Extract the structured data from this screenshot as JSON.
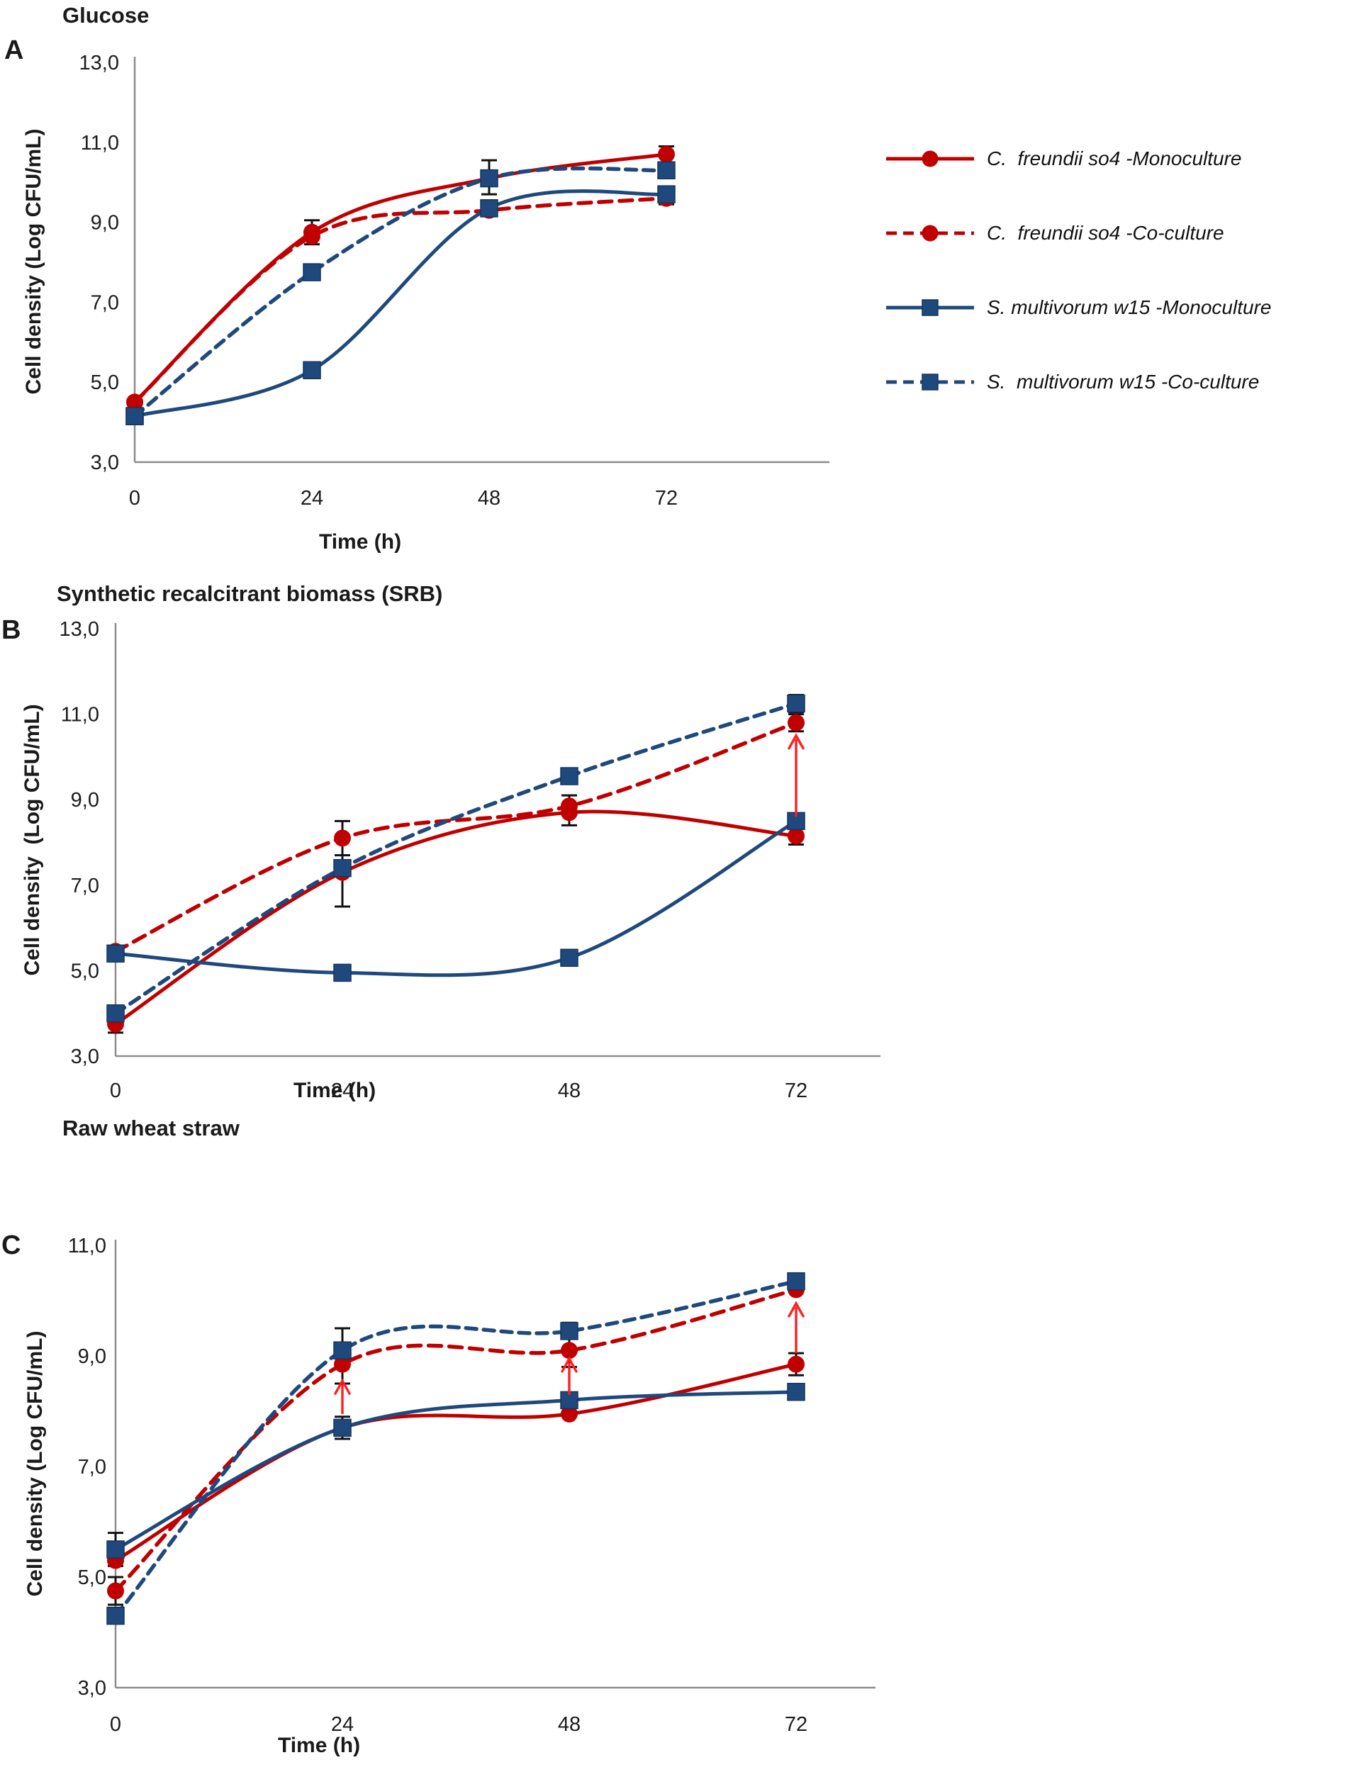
{
  "colors": {
    "red": "#C00000",
    "blue": "#1F497D",
    "blue_border": "#16365C",
    "arrow": "#FF1F1F",
    "axis": "#8C8C8C",
    "error": "#111111"
  },
  "legend": {
    "items": [
      {
        "label": "C.  freundii so4 -Monoculture",
        "color": "red",
        "line": "solid",
        "marker": "circle"
      },
      {
        "label": "C.  freundii so4 -Co-culture",
        "color": "red",
        "line": "dashed",
        "marker": "circle"
      },
      {
        "label": "S. multivorum w15 -Monoculture",
        "color": "blue",
        "line": "solid",
        "marker": "square"
      },
      {
        "label": "S.  multivorum w15 -Co-culture",
        "color": "blue",
        "line": "dashed",
        "marker": "square"
      }
    ]
  },
  "chart_data": [
    {
      "id": "A",
      "type": "line",
      "panel_label": "A",
      "title": "Glucose",
      "xlabel": "Time (h)",
      "ylabel": "Cell density (Log CFU/mL)",
      "x": [
        0,
        24,
        48,
        72
      ],
      "xtick_labels": [
        "0",
        "24",
        "48",
        "72"
      ],
      "ylim": [
        3,
        13
      ],
      "ytick_values": [
        13,
        11,
        9,
        7,
        5,
        3
      ],
      "ytick_labels": [
        "13,0",
        "11,0",
        "9,0",
        "7,0",
        "5,0",
        "3,0"
      ],
      "series": [
        {
          "name": "C. freundii so4 -Monoculture",
          "color": "red",
          "line": "solid",
          "marker": "circle",
          "values": [
            4.5,
            8.75,
            10.1,
            10.7
          ]
        },
        {
          "name": "C. freundii so4 -Co-culture",
          "color": "red",
          "line": "dashed",
          "marker": "circle",
          "values": [
            4.5,
            8.65,
            9.3,
            9.6
          ]
        },
        {
          "name": "S. multivorum w15 -Co-culture",
          "color": "blue",
          "line": "dashed",
          "marker": "square",
          "values": [
            4.15,
            7.75,
            10.1,
            10.3
          ]
        },
        {
          "name": "S. multivorum w15 -Monoculture",
          "color": "blue",
          "line": "solid",
          "marker": "square",
          "values": [
            4.15,
            5.3,
            9.35,
            9.7
          ]
        }
      ],
      "error_bars": [
        {
          "t": 0,
          "lo": 3.95,
          "hi": 4.35
        },
        {
          "t": 24,
          "lo": 8.45,
          "hi": 9.05
        },
        {
          "t": 48,
          "lo": 9.7,
          "hi": 10.55
        },
        {
          "t": 48,
          "lo": 9.15,
          "hi": 9.55
        },
        {
          "t": 72,
          "lo": 10.5,
          "hi": 10.9
        },
        {
          "t": 72,
          "lo": 9.45,
          "hi": 9.85
        }
      ],
      "arrows": []
    },
    {
      "id": "B",
      "type": "line",
      "panel_label": "B",
      "title": "Synthetic recalcitrant biomass (SRB)",
      "xlabel": "Time (h)",
      "ylabel": "Cell density  (Log CFU/mL)",
      "x": [
        0,
        24,
        48,
        72
      ],
      "xtick_labels": [
        "0",
        "24",
        "48",
        "72"
      ],
      "ylim": [
        3,
        13
      ],
      "ytick_values": [
        13,
        11,
        9,
        7,
        5,
        3
      ],
      "ytick_labels": [
        "13,0",
        "11,0",
        "9,0",
        "7,0",
        "5,0",
        "3,0"
      ],
      "series": [
        {
          "name": "C. freundii so4 -Monoculture",
          "color": "red",
          "line": "solid",
          "marker": "circle",
          "values": [
            3.75,
            7.3,
            8.7,
            8.15
          ]
        },
        {
          "name": "C. freundii so4 -Co-culture",
          "color": "red",
          "line": "dashed",
          "marker": "circle",
          "values": [
            5.45,
            8.1,
            8.85,
            10.8
          ]
        },
        {
          "name": "S. multivorum w15 -Co-culture",
          "color": "blue",
          "line": "dashed",
          "marker": "square",
          "values": [
            4.0,
            7.4,
            9.55,
            11.25
          ]
        },
        {
          "name": "S. multivorum w15 -Monoculture",
          "color": "blue",
          "line": "solid",
          "marker": "square",
          "values": [
            5.4,
            4.95,
            5.3,
            8.5
          ]
        }
      ],
      "error_bars": [
        {
          "t": 0,
          "lo": 3.55,
          "hi": 4.1
        },
        {
          "t": 24,
          "lo": 7.7,
          "hi": 8.5
        },
        {
          "t": 24,
          "lo": 6.5,
          "hi": 8.1
        },
        {
          "t": 48,
          "lo": 8.4,
          "hi": 9.1
        },
        {
          "t": 48,
          "lo": 9.4,
          "hi": 9.7
        },
        {
          "t": 72,
          "lo": 11.05,
          "hi": 11.45
        },
        {
          "t": 72,
          "lo": 10.6,
          "hi": 11.0
        },
        {
          "t": 72,
          "lo": 7.95,
          "hi": 8.35
        }
      ],
      "arrows": [
        {
          "t": 72,
          "from": 8.6,
          "to": 10.5
        }
      ]
    },
    {
      "id": "C",
      "type": "line",
      "panel_label": "C",
      "title": "Raw wheat straw",
      "xlabel": "Time (h)",
      "ylabel": "Cell density (Log CFU/mL)",
      "x": [
        0,
        24,
        48,
        72
      ],
      "xtick_labels": [
        "0",
        "24",
        "48",
        "72"
      ],
      "ylim": [
        3,
        11
      ],
      "ytick_values": [
        11,
        9,
        7,
        5,
        3
      ],
      "ytick_labels": [
        "11,0",
        "9,0",
        "7,0",
        "5,0",
        "3,0"
      ],
      "series": [
        {
          "name": "C. freundii so4 -Monoculture",
          "color": "red",
          "line": "solid",
          "marker": "circle",
          "values": [
            5.3,
            7.7,
            7.95,
            8.85
          ]
        },
        {
          "name": "C. freundii so4 -Co-culture",
          "color": "red",
          "line": "dashed",
          "marker": "circle",
          "values": [
            4.75,
            8.85,
            9.1,
            10.2
          ]
        },
        {
          "name": "S. multivorum w15 -Co-culture",
          "color": "blue",
          "line": "dashed",
          "marker": "square",
          "values": [
            4.3,
            9.1,
            9.45,
            10.35
          ]
        },
        {
          "name": "S. multivorum w15 -Monoculture",
          "color": "blue",
          "line": "solid",
          "marker": "square",
          "values": [
            5.5,
            7.7,
            8.2,
            8.35
          ]
        }
      ],
      "error_bars": [
        {
          "t": 0,
          "lo": 5.2,
          "hi": 5.8
        },
        {
          "t": 0,
          "lo": 4.5,
          "hi": 5.0
        },
        {
          "t": 24,
          "lo": 8.5,
          "hi": 9.5
        },
        {
          "t": 24,
          "lo": 7.5,
          "hi": 7.9
        },
        {
          "t": 48,
          "lo": 8.8,
          "hi": 9.6
        },
        {
          "t": 72,
          "lo": 8.65,
          "hi": 9.05
        }
      ],
      "arrows": [
        {
          "t": 24,
          "from": 7.95,
          "to": 8.55
        },
        {
          "t": 48,
          "from": 8.3,
          "to": 8.95
        },
        {
          "t": 72,
          "from": 9.05,
          "to": 9.95
        }
      ]
    }
  ]
}
